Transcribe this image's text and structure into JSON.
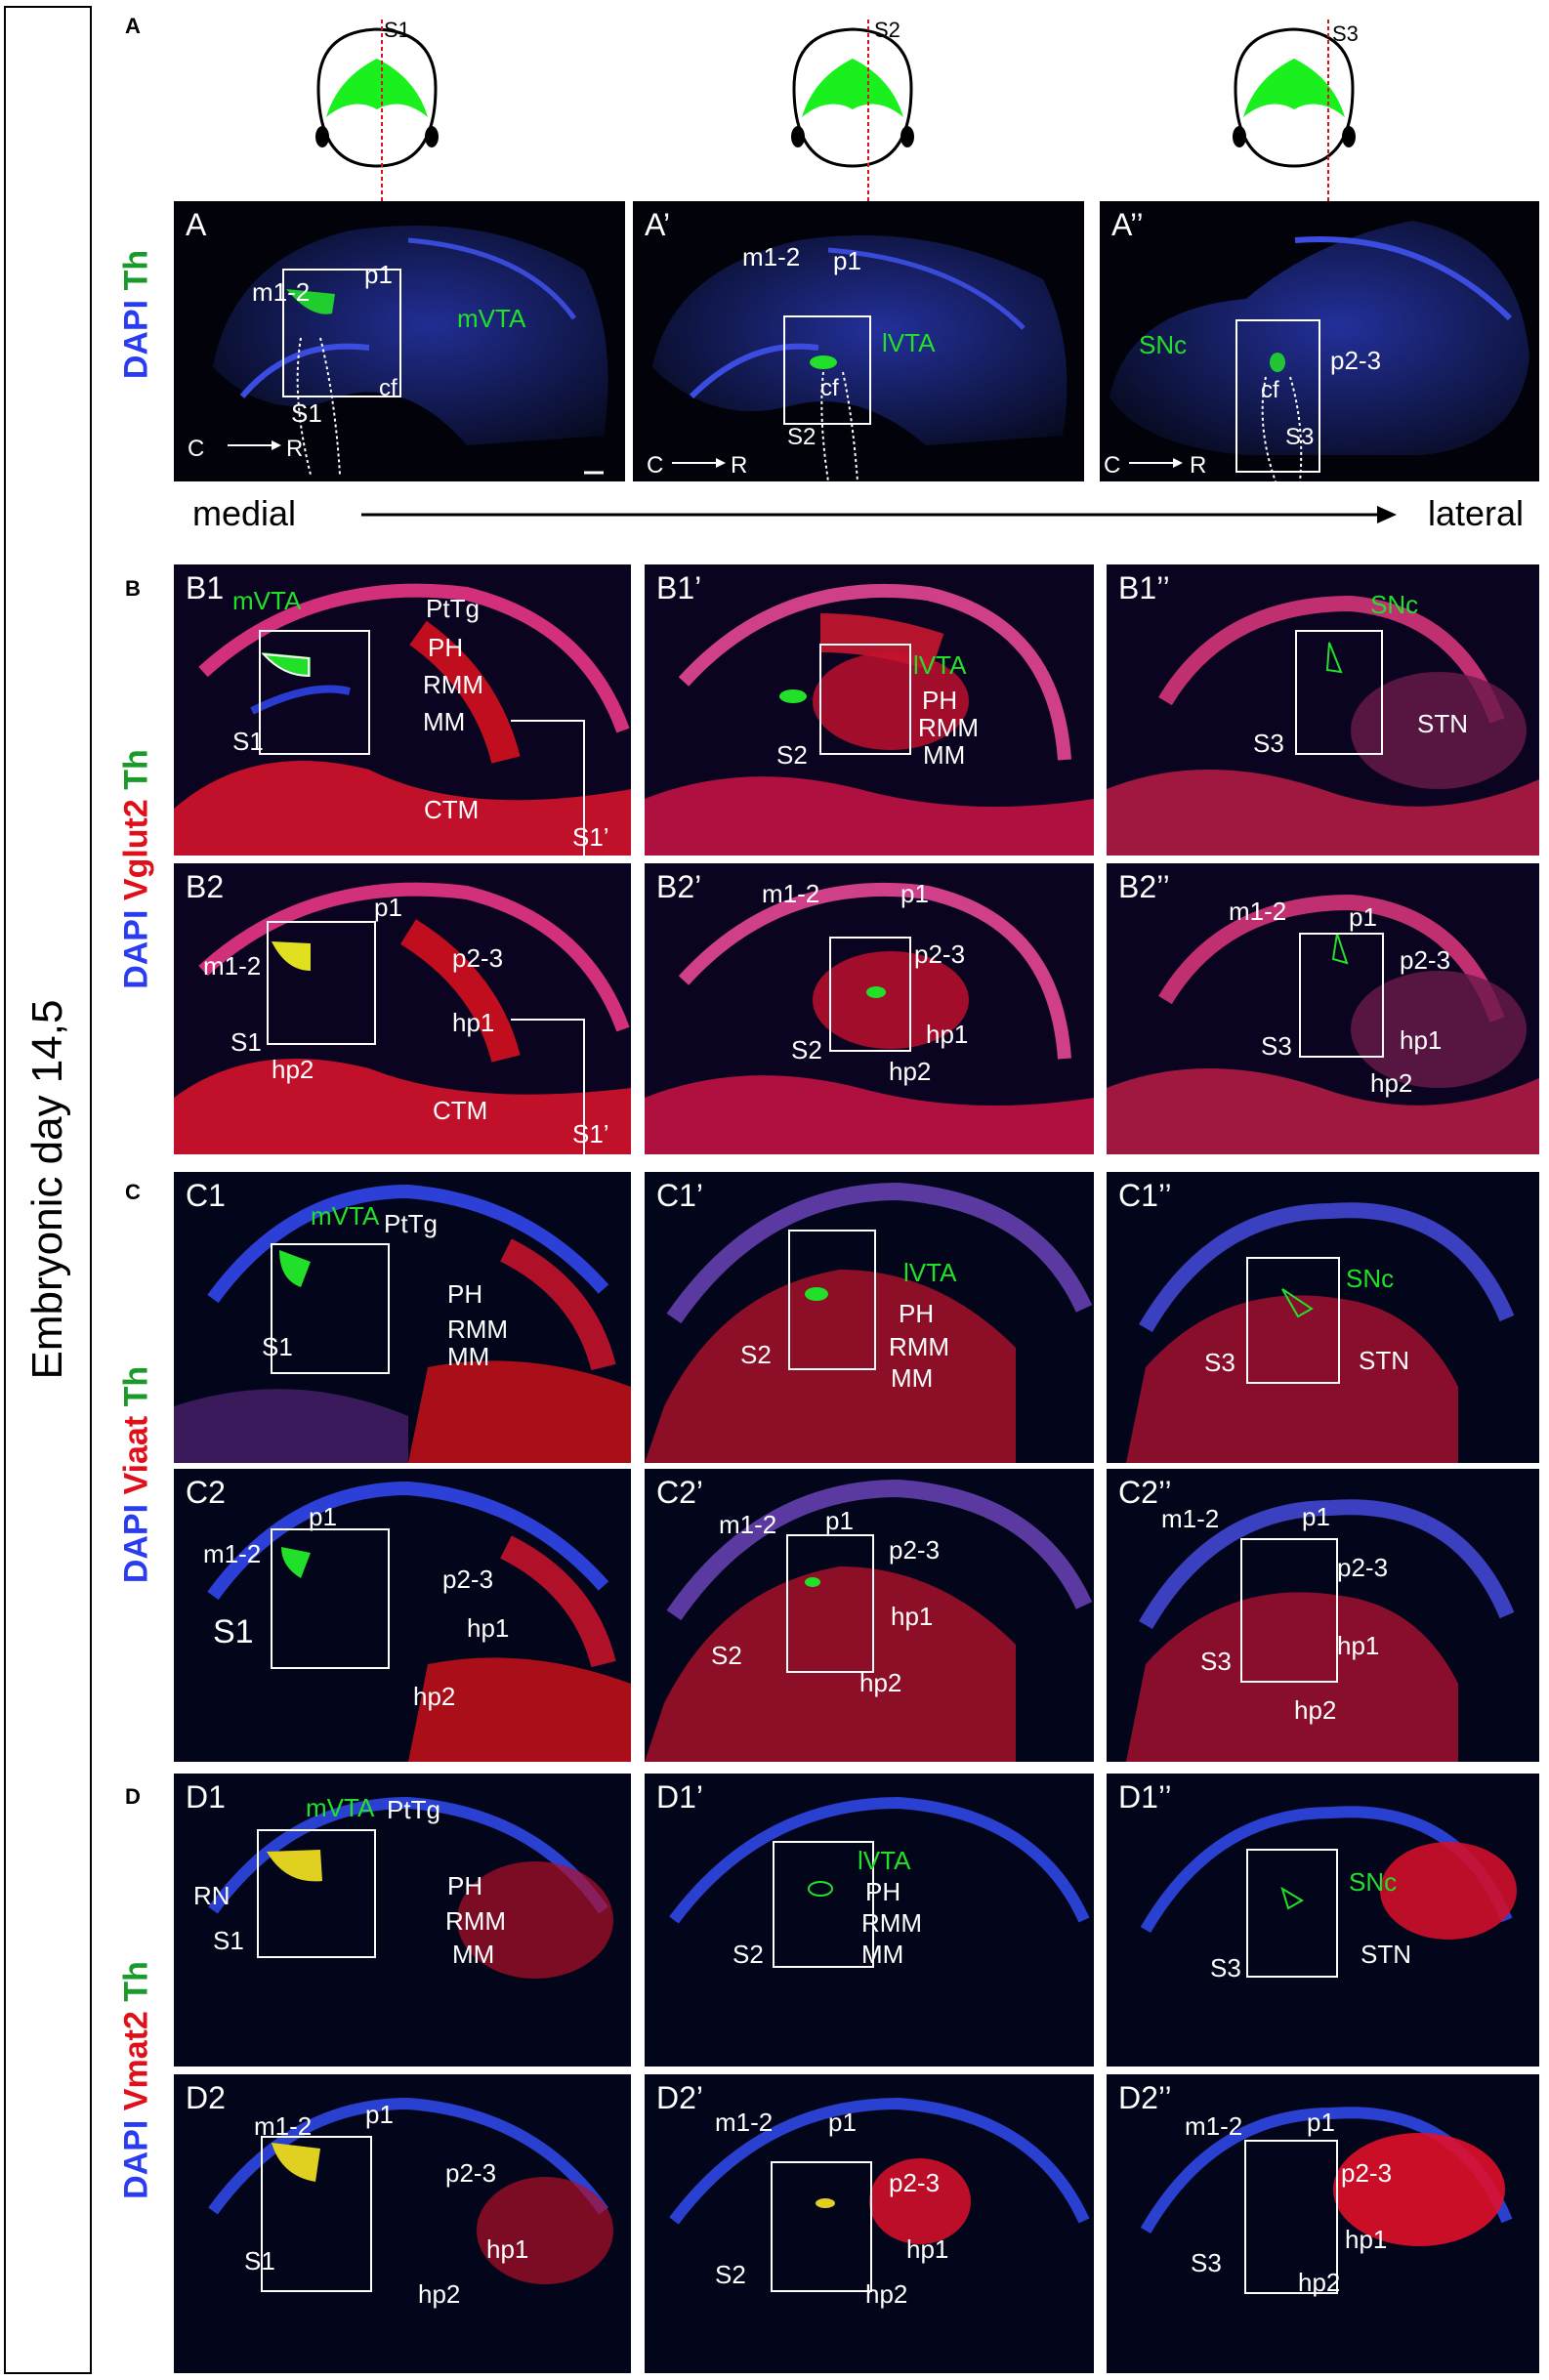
{
  "side_label": "Embryonic day 14,5",
  "sections": {
    "A": "A",
    "B": "B",
    "C": "C",
    "D": "D"
  },
  "slices": [
    "S1",
    "S2",
    "S3"
  ],
  "axis": {
    "medial": "medial",
    "lateral": "lateral",
    "cr_c": "C",
    "cr_r": "R"
  },
  "stains": {
    "A": {
      "dapi": "DAPI",
      "marker": "",
      "th": "Th"
    },
    "B": {
      "dapi": "DAPI",
      "marker": "Vglut2",
      "th": "Th"
    },
    "C": {
      "dapi": "DAPI",
      "marker": "Viaat",
      "th": "Th"
    },
    "D": {
      "dapi": "DAPI",
      "marker": "Vmat2",
      "th": "Th"
    }
  },
  "panels": {
    "A": [
      "A",
      "A’",
      "A’’"
    ],
    "B1": [
      "B1",
      "B1’",
      "B1’’"
    ],
    "B2": [
      "B2",
      "B2’",
      "B2’’"
    ],
    "C1": [
      "C1",
      "C1’",
      "C1’’"
    ],
    "C2": [
      "C2",
      "C2’",
      "C2’’"
    ],
    "D1": [
      "D1",
      "D1’",
      "D1’’"
    ],
    "D2": [
      "D2",
      "D2’",
      "D2’’"
    ]
  },
  "labels": {
    "m12": "m1-2",
    "p1": "p1",
    "p23": "p2-3",
    "hp1": "hp1",
    "hp2": "hp2",
    "cf": "cf",
    "mVTA": "mVTA",
    "lVTA": "lVTA",
    "SNc": "SNc",
    "PtTg": "PtTg",
    "PH": "PH",
    "RMM": "RMM",
    "MM": "MM",
    "CTM": "CTM",
    "S1p": "S1’",
    "STN": "STN",
    "RN": "RN"
  },
  "colors": {
    "dapi": "#2a3cf0",
    "marker": "#e0101a",
    "th": "#22e02a",
    "background": "#02030a"
  }
}
